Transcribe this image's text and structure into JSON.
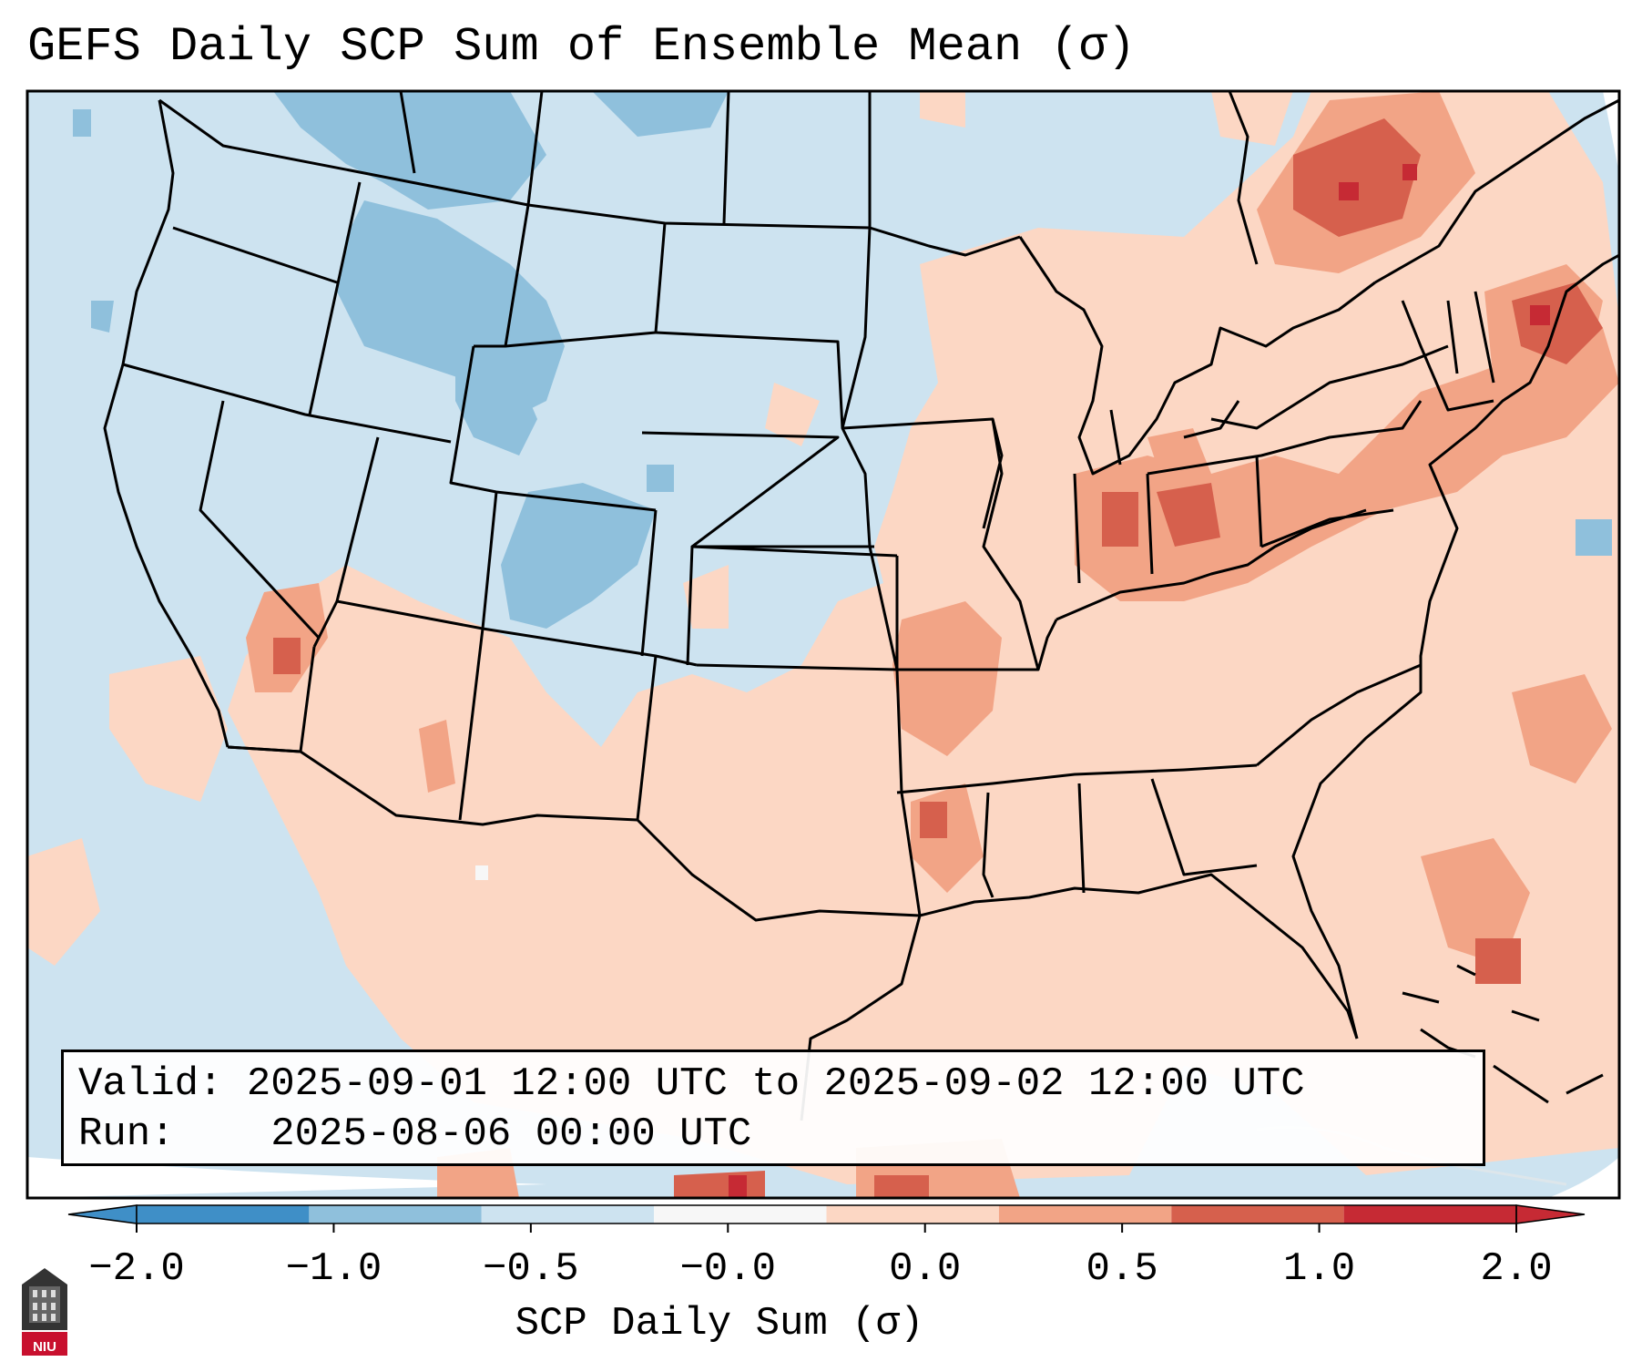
{
  "title": "GEFS Daily SCP Sum of Ensemble Mean (σ)",
  "info": {
    "valid_label": "Valid:",
    "valid_value": "2025-09-01 12:00 UTC to 2025-09-02 12:00 UTC",
    "run_label": "Run:",
    "run_value": "2025-08-06 00:00 UTC"
  },
  "colorbar": {
    "label": "SCP Daily Sum (σ)",
    "ticks": [
      "−2.0",
      "−1.0",
      "−0.5",
      "−0.0",
      "0.0",
      "0.5",
      "1.0",
      "2.0"
    ],
    "colors": [
      "#3f8fc7",
      "#8fc0dc",
      "#cde3f0",
      "#f7f7f7",
      "#fcd7c4",
      "#f2a486",
      "#d6604d",
      "#c62a34"
    ]
  },
  "map": {
    "background_color": "#cde3f0",
    "region": "Contiguous United States",
    "dominant_anomalies": [
      {
        "area": "Northern Rockies",
        "category": "−1.0 to −0.5"
      },
      {
        "area": "Colorado",
        "category": "−1.0 to −0.5"
      },
      {
        "area": "Ohio Valley / Indiana",
        "category": "0.5 to 1.0"
      },
      {
        "area": "Northeast / New England",
        "category": "1.0 to 2.0"
      },
      {
        "area": "Southeastern Canada",
        "category": "1.0 to 2.0"
      },
      {
        "area": "Lower Mississippi Valley",
        "category": "0.5 to 1.0"
      },
      {
        "area": "Western Atlantic",
        "category": "0.0 to 0.5"
      }
    ]
  },
  "logo": {
    "text": "NIU"
  }
}
